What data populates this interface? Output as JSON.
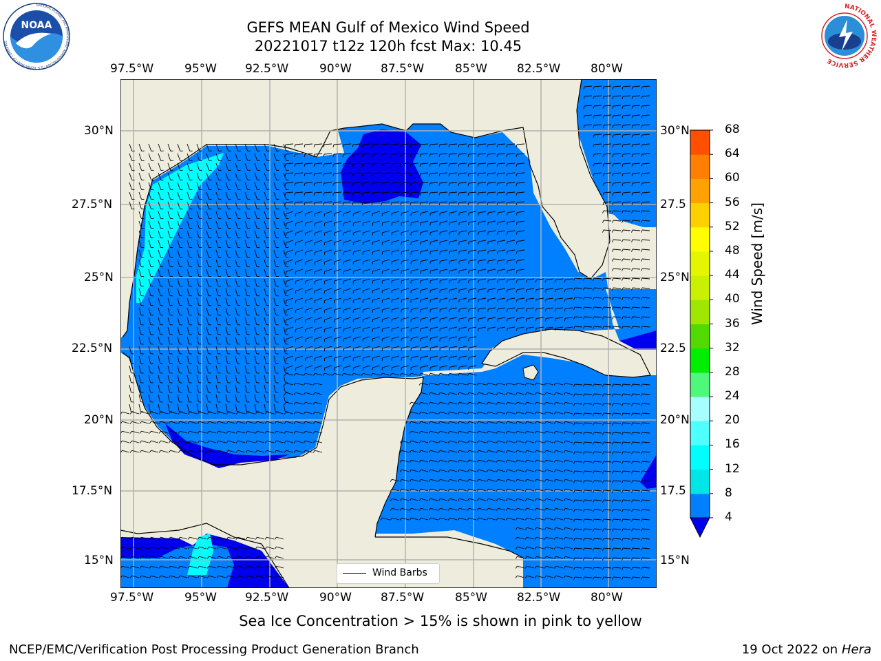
{
  "header": {
    "title_line1": "GEFS MEAN Gulf of Mexico Wind Speed",
    "title_line2": "20221017 t12z 120h fcst   Max: 10.45"
  },
  "logos": {
    "left": {
      "text": "NOAA",
      "ring_text": "NATIONAL OCEANIC AND ATMOSPHERIC ADMINISTRATION · U.S. DEPARTMENT OF COMMERCE"
    },
    "right": {
      "ring_text": "NATIONAL WEATHER SERVICE"
    }
  },
  "map": {
    "lon_labels": [
      "97.5°W",
      "95°W",
      "92.5°W",
      "90°W",
      "87.5°W",
      "85°W",
      "82.5°W",
      "80°W"
    ],
    "lat_labels": [
      "30°N",
      "27.5°N",
      "25°N",
      "22.5°N",
      "20°N",
      "17.5°N",
      "15°N"
    ],
    "right_lat_labels": [
      "30°N",
      "27.5",
      "25°N",
      "22.5",
      "20°N",
      "17.5",
      "15°N"
    ],
    "legend_label": "Wind Barbs",
    "colors": {
      "land": "#eeeddd",
      "ocean_light": "#007ffe",
      "ocean_dark": "#0000ee",
      "ocean_cyan": "#00fefe",
      "grid": "#b0b0b0"
    }
  },
  "colorbar": {
    "label": "Wind Speed [m/s]",
    "levels": [
      "4",
      "8",
      "12",
      "16",
      "20",
      "24",
      "28",
      "32",
      "36",
      "40",
      "44",
      "48",
      "52",
      "56",
      "60",
      "64",
      "68"
    ],
    "colors": [
      "#007ffe",
      "#00e6e6",
      "#00fefe",
      "#4ffefe",
      "#a6fefe",
      "#4ff77a",
      "#00ee00",
      "#52d900",
      "#9fe600",
      "#c8f000",
      "#e4f500",
      "#fefe00",
      "#ffd000",
      "#ffa200",
      "#ff7f00",
      "#ff4f00",
      "#ff1600"
    ],
    "under_color": "#0000ee"
  },
  "footer": {
    "sea_ice_note": "Sea Ice Concentration > 15% is shown in pink to yellow",
    "branch": "NCEP/EMC/Verification Post Processing Product Generation Branch",
    "date_prefix": "19 Oct 2022 on ",
    "machine": "Hera"
  }
}
